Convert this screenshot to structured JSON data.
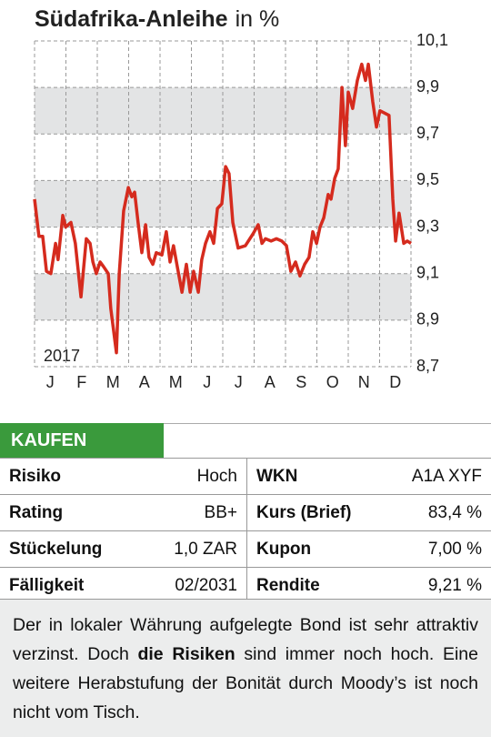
{
  "chart_data": {
    "type": "line",
    "title": "Südafrika-Anleihe",
    "unit": "in %",
    "annotation": "2017",
    "x": [
      0,
      0.14,
      0.26,
      0.38,
      0.52,
      0.67,
      0.75,
      0.9,
      0.99,
      1.16,
      1.3,
      1.48,
      1.65,
      1.77,
      1.86,
      1.97,
      2.09,
      2.2,
      2.35,
      2.43,
      2.61,
      2.7,
      2.84,
      2.99,
      3.1,
      3.19,
      3.3,
      3.42,
      3.54,
      3.65,
      3.77,
      3.88,
      4.06,
      4.2,
      4.32,
      4.43,
      4.55,
      4.7,
      4.84,
      4.96,
      5.07,
      5.22,
      5.33,
      5.45,
      5.59,
      5.71,
      5.83,
      5.97,
      6.09,
      6.2,
      6.32,
      6.49,
      6.72,
      6.96,
      7.13,
      7.25,
      7.36,
      7.54,
      7.71,
      7.88,
      8.03,
      8.17,
      8.32,
      8.46,
      8.61,
      8.75,
      8.87,
      8.99,
      9.1,
      9.22,
      9.36,
      9.45,
      9.57,
      9.68,
      9.8,
      9.91,
      10,
      10.14,
      10.29,
      10.43,
      10.55,
      10.64,
      10.78,
      10.9,
      11.01,
      11.16,
      11.3,
      11.42,
      11.51,
      11.62,
      11.77,
      11.88,
      12
    ],
    "series": [
      {
        "color": "#d52b1e",
        "values": [
          9.42,
          9.26,
          9.26,
          9.11,
          9.1,
          9.23,
          9.16,
          9.35,
          9.3,
          9.32,
          9.23,
          9.0,
          9.25,
          9.23,
          9.15,
          9.1,
          9.15,
          9.13,
          9.1,
          8.95,
          8.76,
          9.1,
          9.37,
          9.47,
          9.43,
          9.45,
          9.32,
          9.19,
          9.31,
          9.17,
          9.14,
          9.19,
          9.18,
          9.28,
          9.15,
          9.22,
          9.13,
          9.02,
          9.14,
          9.02,
          9.11,
          9.02,
          9.16,
          9.23,
          9.28,
          9.23,
          9.38,
          9.4,
          9.56,
          9.53,
          9.32,
          9.21,
          9.22,
          9.27,
          9.31,
          9.23,
          9.25,
          9.24,
          9.25,
          9.24,
          9.22,
          9.11,
          9.15,
          9.09,
          9.14,
          9.17,
          9.28,
          9.23,
          9.3,
          9.34,
          9.44,
          9.42,
          9.51,
          9.55,
          9.9,
          9.65,
          9.88,
          9.81,
          9.93,
          10.0,
          9.93,
          10.0,
          9.84,
          9.73,
          9.8,
          9.79,
          9.78,
          9.42,
          9.24,
          9.36,
          9.23,
          9.24,
          9.23
        ]
      }
    ],
    "xlim": [
      0,
      12
    ],
    "xticks": [
      {
        "value": 0.5,
        "label": "J"
      },
      {
        "value": 1.5,
        "label": "F"
      },
      {
        "value": 2.5,
        "label": "M"
      },
      {
        "value": 3.5,
        "label": "A"
      },
      {
        "value": 4.5,
        "label": "M"
      },
      {
        "value": 5.5,
        "label": "J"
      },
      {
        "value": 6.5,
        "label": "J"
      },
      {
        "value": 7.5,
        "label": "A"
      },
      {
        "value": 8.5,
        "label": "S"
      },
      {
        "value": 9.5,
        "label": "O"
      },
      {
        "value": 10.5,
        "label": "N"
      },
      {
        "value": 11.5,
        "label": "D"
      }
    ],
    "ylim": [
      8.7,
      10.1
    ],
    "yticks": [
      {
        "value": 8.7,
        "label": "8,7"
      },
      {
        "value": 8.9,
        "label": "8,9"
      },
      {
        "value": 9.1,
        "label": "9,1"
      },
      {
        "value": 9.3,
        "label": "9,3"
      },
      {
        "value": 9.5,
        "label": "9,5"
      },
      {
        "value": 9.7,
        "label": "9,7"
      },
      {
        "value": 9.9,
        "label": "9,9"
      },
      {
        "value": 10.1,
        "label": "10,1"
      }
    ],
    "grid": true
  },
  "table": {
    "header": "KAUFEN",
    "rows": [
      [
        "Risiko",
        "Hoch",
        "WKN",
        "A1A XYF"
      ],
      [
        "Rating",
        "BB+",
        "Kurs (Brief)",
        "83,4 %"
      ],
      [
        "Stückelung",
        "1,0 ZAR",
        "Kupon",
        "7,00 %"
      ],
      [
        "Fälligkeit",
        "02/2031",
        "Rendite",
        "9,21 %"
      ]
    ]
  },
  "text": {
    "parts": [
      "Der in lokaler Währung aufgelegte Bond ist sehr attraktiv verzinst. Doch ",
      "die Risiken",
      " sind immer noch hoch. Eine weitere Herabstufung der Bonität durch Moody’s ist noch nicht vom Tisch."
    ]
  }
}
